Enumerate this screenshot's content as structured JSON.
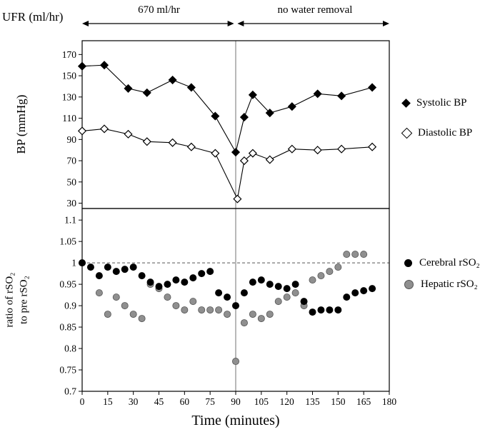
{
  "header": {
    "ufr_label": "UFR (ml/hr)",
    "phase1_label": "670 ml/hr",
    "phase2_label": "no water removal"
  },
  "x_axis": {
    "label": "Time (minutes)",
    "lim": [
      0,
      180
    ],
    "ticks": [
      0,
      15,
      30,
      45,
      60,
      75,
      90,
      105,
      120,
      135,
      150,
      165,
      180
    ]
  },
  "annotations": {
    "vline_x": 90,
    "ref_line_y": 1.0
  },
  "colors": {
    "black": "#000000",
    "gray_marker": "#8f8f8f",
    "vline": "#8a8a8a",
    "dashed": "#555555"
  },
  "chart_data": [
    {
      "type": "line",
      "panel": "top",
      "ylabel": "BP (mmHg)",
      "ylim": [
        25,
        183
      ],
      "yticks": [
        30,
        50,
        70,
        90,
        110,
        130,
        150,
        170
      ],
      "series": [
        {
          "name": "Systolic BP",
          "marker": "filled-diamond",
          "x": [
            0,
            13,
            27,
            38,
            53,
            64,
            78,
            90,
            95,
            100,
            110,
            123,
            138,
            152,
            170
          ],
          "y": [
            159,
            160,
            138,
            134,
            146,
            139,
            112,
            78,
            111,
            132,
            115,
            121,
            133,
            131,
            139
          ]
        },
        {
          "name": "Diastolic BP",
          "marker": "open-diamond",
          "x": [
            0,
            13,
            27,
            38,
            53,
            64,
            78,
            91,
            95,
            100,
            110,
            123,
            138,
            152,
            170
          ],
          "y": [
            98,
            100,
            95,
            88,
            87,
            83,
            77,
            34,
            70,
            77,
            71,
            81,
            80,
            81,
            83
          ]
        }
      ]
    },
    {
      "type": "scatter",
      "panel": "bottom",
      "ylabel": "ratio of rSO₂ to pre rSO₂",
      "ylabel_lines": [
        "ratio of rSO₂",
        "to pre rSO₂"
      ],
      "ylim": [
        0.7,
        1.127
      ],
      "yticks": [
        0.7,
        0.75,
        0.8,
        0.85,
        0.9,
        0.95,
        1,
        1.05,
        1.1
      ],
      "series": [
        {
          "name": "Hepatic rSO₂",
          "marker": "gray-circle",
          "x": [
            0,
            10,
            15,
            20,
            25,
            30,
            35,
            40,
            45,
            50,
            55,
            60,
            65,
            70,
            75,
            80,
            85,
            90,
            95,
            100,
            105,
            110,
            115,
            120,
            125,
            130,
            135,
            140,
            145,
            150,
            155,
            160,
            165
          ],
          "y": [
            1.0,
            0.93,
            0.88,
            0.92,
            0.9,
            0.88,
            0.87,
            0.95,
            0.94,
            0.92,
            0.9,
            0.89,
            0.91,
            0.89,
            0.89,
            0.89,
            0.88,
            0.77,
            0.86,
            0.88,
            0.87,
            0.88,
            0.91,
            0.92,
            0.93,
            0.9,
            0.96,
            0.97,
            0.98,
            0.99,
            1.02,
            1.02,
            1.02
          ]
        },
        {
          "name": "Cerebral rSO₂",
          "marker": "black-circle",
          "x": [
            0,
            5,
            10,
            15,
            20,
            25,
            30,
            35,
            40,
            45,
            50,
            55,
            60,
            65,
            70,
            75,
            80,
            85,
            90,
            95,
            100,
            105,
            110,
            115,
            120,
            125,
            130,
            135,
            140,
            145,
            150,
            155,
            160,
            165,
            170
          ],
          "y": [
            1.0,
            0.99,
            0.97,
            0.99,
            0.98,
            0.985,
            0.99,
            0.97,
            0.955,
            0.945,
            0.95,
            0.96,
            0.955,
            0.965,
            0.975,
            0.98,
            0.93,
            0.92,
            0.9,
            0.93,
            0.955,
            0.96,
            0.95,
            0.945,
            0.94,
            0.95,
            0.91,
            0.885,
            0.89,
            0.89,
            0.89,
            0.92,
            0.93,
            0.935,
            0.94
          ]
        }
      ]
    }
  ],
  "legend": {
    "top": [
      {
        "label": "Systolic BP",
        "marker": "filled-diamond"
      },
      {
        "label": "Diastolic BP",
        "marker": "open-diamond"
      }
    ],
    "bottom": [
      {
        "label": "Cerebral rSO₂",
        "marker": "black-circle"
      },
      {
        "label": "Hepatic rSO₂",
        "marker": "gray-circle"
      }
    ]
  }
}
